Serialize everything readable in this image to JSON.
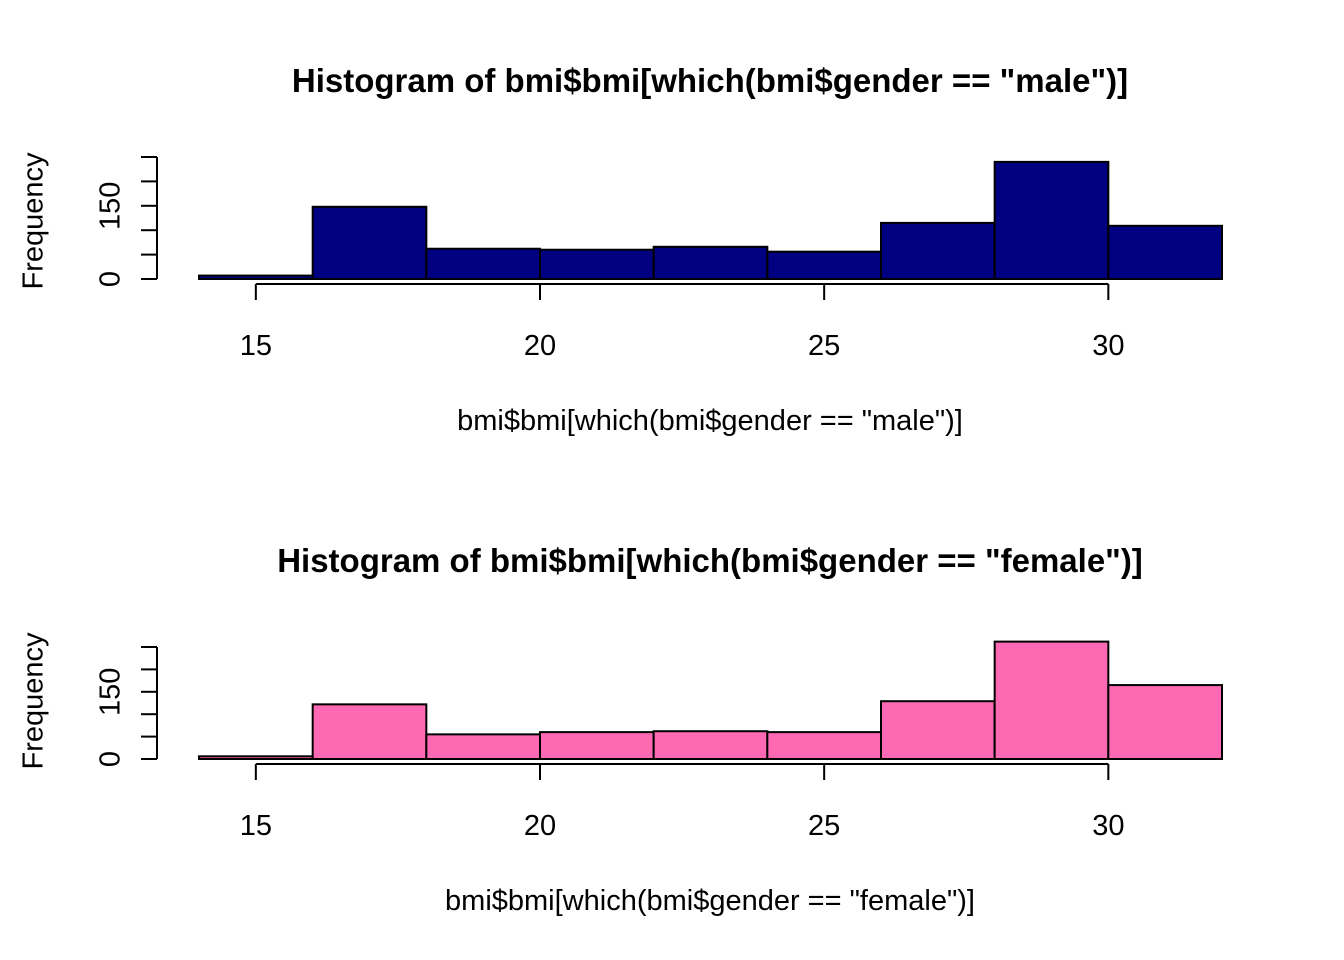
{
  "chart_data": [
    {
      "type": "bar",
      "title": "Histogram of bmi$bmi[which(bmi$gender == \"male\")]",
      "xlabel": "bmi$bmi[which(bmi$gender == \"male\")]",
      "ylabel": "Frequency",
      "bar_color": "#000080",
      "bin_edges": [
        14,
        16,
        18,
        20,
        22,
        24,
        26,
        28,
        30,
        32
      ],
      "values": [
        7,
        148,
        62,
        60,
        66,
        56,
        115,
        240,
        109
      ],
      "x_ticks": [
        15,
        20,
        25,
        30
      ],
      "x_tick_labels": [
        "15",
        "20",
        "25",
        "30"
      ],
      "y_ticks": [
        0,
        50,
        100,
        150,
        200,
        250
      ],
      "y_tick_labels": [
        "0",
        "150"
      ],
      "xlim": [
        14,
        32
      ],
      "ylim": [
        0,
        250
      ],
      "grid": false,
      "legend": "none"
    },
    {
      "type": "bar",
      "title": "Histogram of bmi$bmi[which(bmi$gender == \"female\")]",
      "xlabel": "bmi$bmi[which(bmi$gender == \"female\")]",
      "ylabel": "Frequency",
      "bar_color": "#ff69b4",
      "bin_edges": [
        14,
        16,
        18,
        20,
        22,
        24,
        26,
        28,
        30,
        32
      ],
      "values": [
        6,
        122,
        55,
        60,
        62,
        60,
        129,
        262,
        165
      ],
      "x_ticks": [
        15,
        20,
        25,
        30
      ],
      "x_tick_labels": [
        "15",
        "20",
        "25",
        "30"
      ],
      "y_ticks": [
        0,
        50,
        100,
        150,
        200,
        250
      ],
      "y_tick_labels": [
        "0",
        "150"
      ],
      "xlim": [
        14,
        32
      ],
      "ylim": [
        0,
        250
      ],
      "grid": false,
      "legend": "none"
    }
  ]
}
